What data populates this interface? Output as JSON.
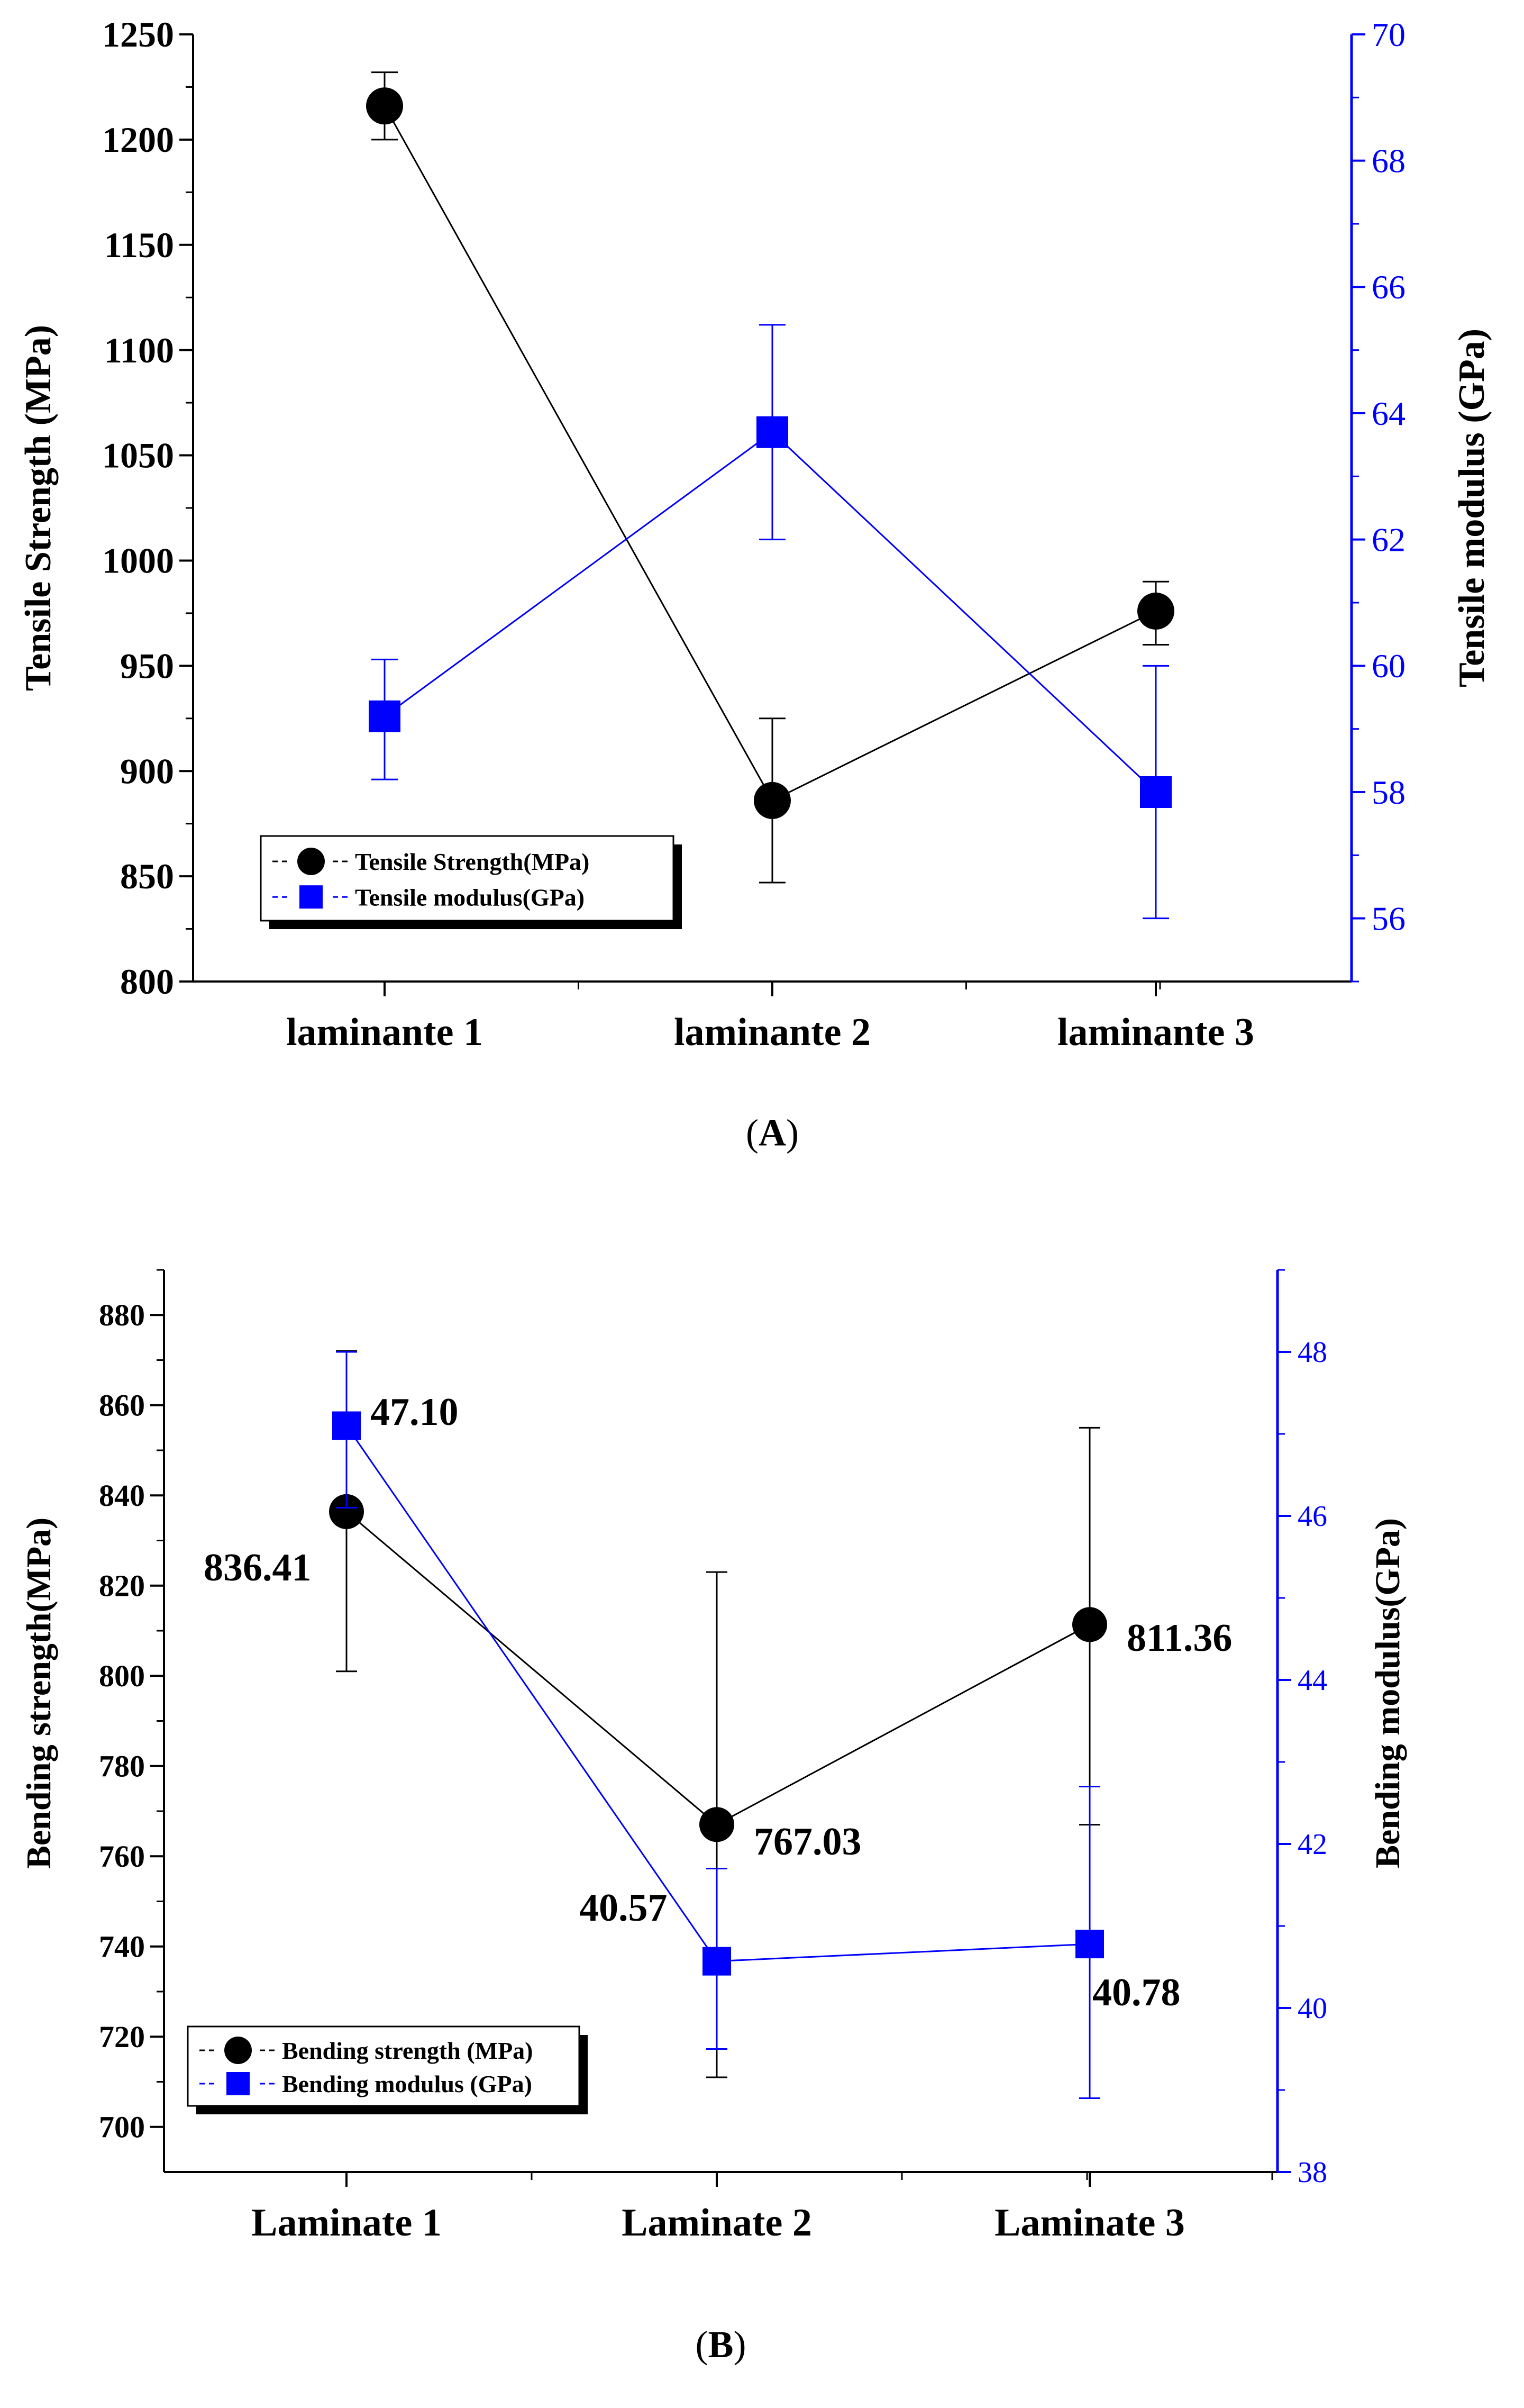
{
  "colors": {
    "primary": "#000000",
    "secondary": "#0000ff"
  },
  "chart_data": [
    {
      "type": "line",
      "panel": "A",
      "caption": {
        "open": "(",
        "letter": "A",
        "close": ")"
      },
      "categories": [
        "laminante 1",
        "laminante 2",
        "laminante 3"
      ],
      "ylabel": "Tensile Strength (MPa)",
      "y2label": "Tensile modulus (GPa)",
      "ylim": [
        800,
        1250
      ],
      "y2lim": [
        55,
        70
      ],
      "yticks": [
        800,
        850,
        900,
        950,
        1000,
        1050,
        1100,
        1150,
        1200,
        1250
      ],
      "y2ticks": [
        56,
        58,
        60,
        62,
        64,
        66,
        68,
        70
      ],
      "series": [
        {
          "name": "Tensile Strength(MPa)",
          "axis": "left",
          "marker": "circle",
          "color": "#000000",
          "values": [
            1216,
            886,
            976
          ],
          "err_low": [
            1200,
            847,
            960
          ],
          "err_high": [
            1232,
            925,
            990
          ],
          "labels": [
            "",
            "",
            ""
          ]
        },
        {
          "name": "Tensile modulus(GPa)",
          "axis": "right",
          "marker": "square",
          "color": "#0000ff",
          "values": [
            59.2,
            63.7,
            58.0
          ],
          "err_low": [
            58.2,
            62.0,
            56.0
          ],
          "err_high": [
            60.1,
            65.4,
            60.0
          ],
          "labels": [
            "",
            "",
            ""
          ]
        }
      ]
    },
    {
      "type": "line",
      "panel": "B",
      "caption": {
        "open": "(",
        "letter": "B",
        "close": ")"
      },
      "categories": [
        "Laminate 1",
        "Laminate 2",
        "Laminate 3"
      ],
      "ylabel": "Bending strength(MPa)",
      "y2label": "Bending modulus(GPa)",
      "ylim": [
        690,
        890
      ],
      "y2lim": [
        38,
        49
      ],
      "yticks": [
        700,
        720,
        740,
        760,
        780,
        800,
        820,
        840,
        860,
        880
      ],
      "y2ticks": [
        38,
        40,
        42,
        44,
        46,
        48
      ],
      "series": [
        {
          "name": "Bending strength (MPa)",
          "axis": "left",
          "marker": "circle",
          "color": "#000000",
          "values": [
            836.41,
            767.03,
            811.36
          ],
          "err_low": [
            801,
            711,
            767
          ],
          "err_high": [
            872,
            823,
            855
          ],
          "labels": [
            "836.41",
            "767.03",
            "811.36"
          ]
        },
        {
          "name": "Bending modulus (GPa)",
          "axis": "right",
          "marker": "square",
          "color": "#0000ff",
          "values": [
            47.1,
            40.57,
            40.78
          ],
          "err_low": [
            46.1,
            39.5,
            38.9
          ],
          "err_high": [
            48.0,
            41.7,
            42.7
          ],
          "labels": [
            "47.10",
            "40.57",
            "40.78"
          ]
        }
      ]
    }
  ]
}
